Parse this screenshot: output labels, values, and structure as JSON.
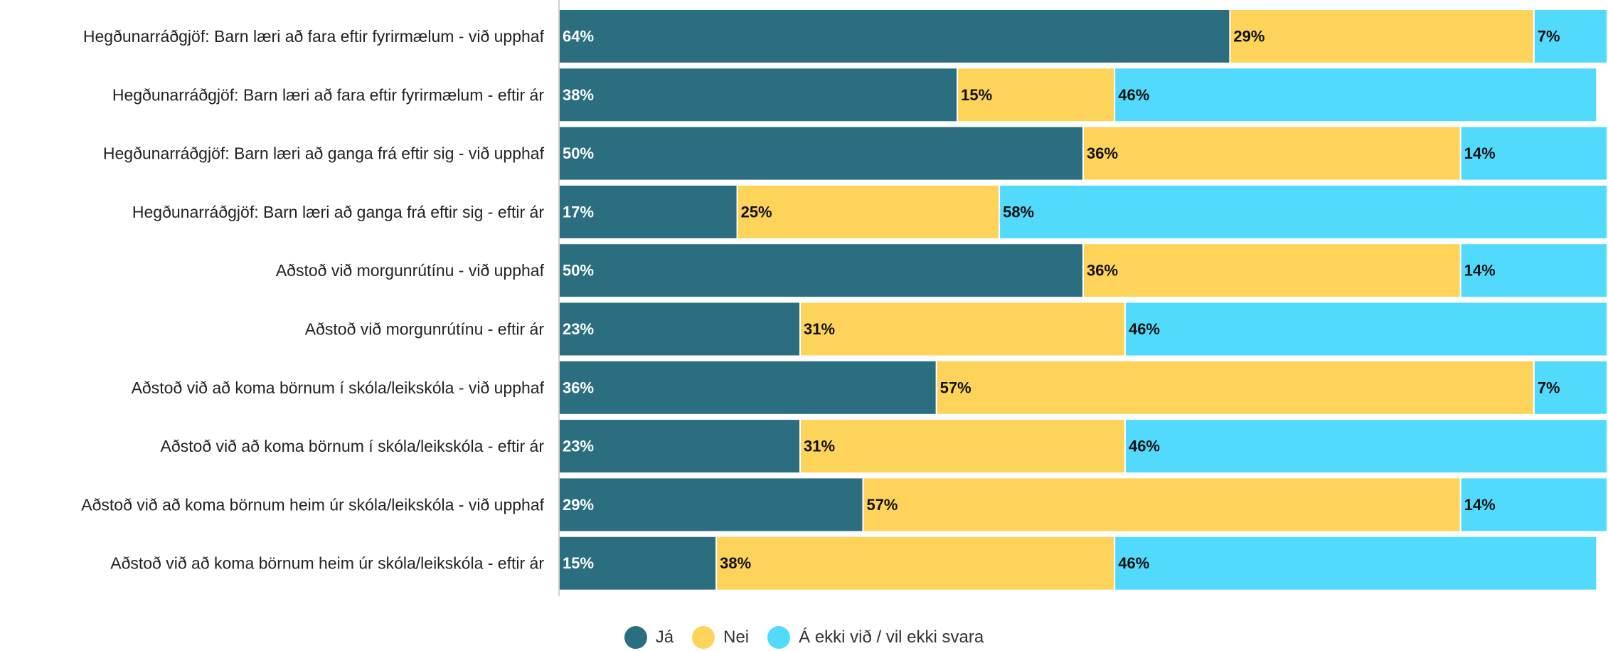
{
  "chart_data": {
    "type": "bar",
    "orientation": "horizontal",
    "stacked": true,
    "categories": [
      "Hegðunarráðgjöf: Barn læri að fara eftir fyrirmælum - við upphaf",
      "Hegðunarráðgjöf: Barn læri að fara eftir fyrirmælum - eftir ár",
      "Hegðunarráðgjöf: Barn læri að ganga frá eftir sig - við upphaf",
      "Hegðunarráðgjöf: Barn læri að ganga frá eftir sig - eftir ár",
      "Aðstoð við morgunrútínu - við upphaf",
      "Aðstoð við morgunrútínu - eftir ár",
      "Aðstoð við að koma börnum í skóla/leikskóla - við upphaf",
      "Aðstoð við að koma börnum í skóla/leikskóla - eftir ár",
      "Aðstoð við að koma börnum heim úr skóla/leikskóla - við upphaf",
      "Aðstoð við að koma börnum heim úr skóla/leikskóla - eftir ár"
    ],
    "series": [
      {
        "name": "Já",
        "color": "#2a6e7f",
        "label_color": "#ffffff",
        "values": [
          64,
          38,
          50,
          17,
          50,
          23,
          36,
          23,
          29,
          15
        ]
      },
      {
        "name": "Nei",
        "color": "#fdd35a",
        "label_color": "#111111",
        "values": [
          29,
          15,
          36,
          25,
          36,
          31,
          57,
          31,
          57,
          38
        ]
      },
      {
        "name": "Á ekki við / vil ekki svara",
        "color": "#52dafd",
        "label_color": "#111111",
        "values": [
          7,
          46,
          14,
          58,
          14,
          46,
          7,
          46,
          14,
          46
        ]
      }
    ],
    "value_suffix": "%",
    "xlim": [
      0,
      100
    ],
    "grid": false,
    "legend_position": "bottom-center"
  }
}
